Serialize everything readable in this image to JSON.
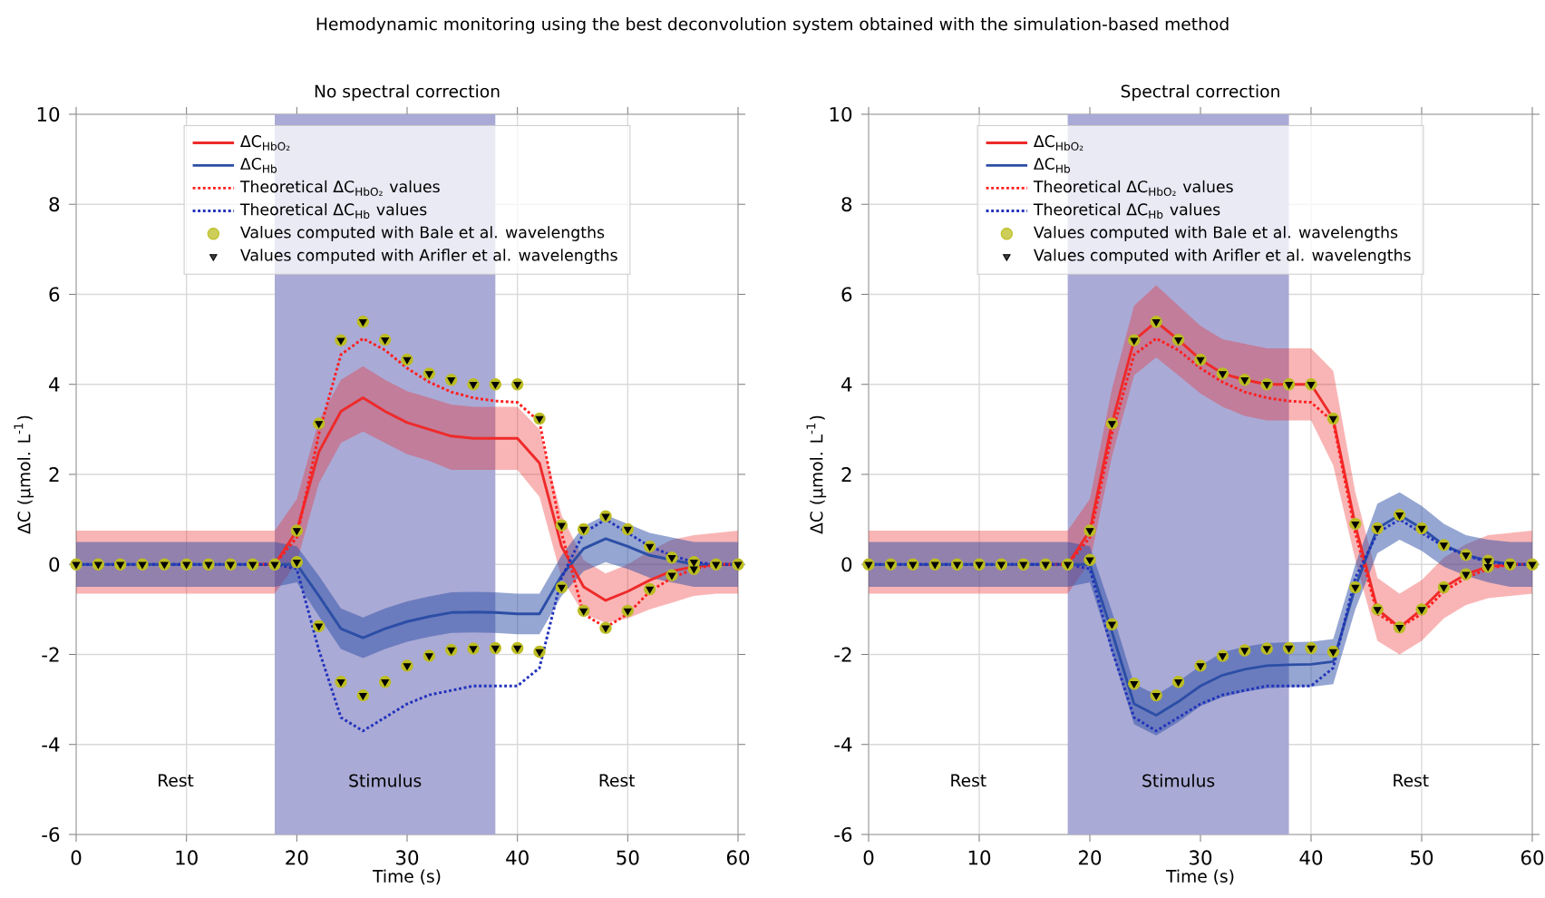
{
  "chart_data": [
    {
      "type": "line",
      "title": "No spectral correction",
      "xlabel": "Time (s)",
      "ylabel": "ΔC (μmol. L$^{-1}$)",
      "annotations": [
        "Hemodynamic monitoring using the best deconvolution system obtained with the simulation-based method",
        "Rest",
        "Stimulus",
        "Rest"
      ],
      "x": [
        0,
        2,
        4,
        6,
        8,
        10,
        12,
        14,
        16,
        18,
        20,
        22,
        24,
        26,
        28,
        30,
        32,
        34,
        36,
        38,
        40,
        42,
        44,
        46,
        48,
        50,
        52,
        54,
        56,
        58,
        60
      ],
      "xlim": [
        0,
        60
      ],
      "xticks": [
        0,
        10,
        20,
        30,
        40,
        50,
        60
      ],
      "ylim": [
        -6,
        10
      ],
      "yticks": [
        -6,
        -4,
        -2,
        0,
        2,
        4,
        6,
        8,
        10
      ],
      "grid": true,
      "legend": "top",
      "bands": [
        {
          "axis": "x",
          "from": 18,
          "to": 38,
          "color": "#aaaad6"
        }
      ],
      "series": [
        {
          "name": "ΔC$_{HbO₂}$",
          "color": "#ee2a2a",
          "line_style": "solid",
          "values": [
            null,
            null,
            null,
            null,
            null,
            null,
            null,
            null,
            0,
            0,
            0.75,
            2.5,
            3.4,
            3.7,
            3.4,
            3.15,
            3.0,
            2.85,
            2.8,
            2.8,
            2.8,
            2.25,
            0.4,
            -0.5,
            -0.8,
            -0.6,
            -0.35,
            -0.15,
            -0.05,
            0,
            0
          ],
          "lower": [
            -0.65,
            -0.65,
            -0.65,
            -0.65,
            -0.65,
            -0.65,
            -0.65,
            -0.65,
            -0.65,
            -0.65,
            0.05,
            1.8,
            2.7,
            2.95,
            2.7,
            2.45,
            2.3,
            2.1,
            2.1,
            2.1,
            2.1,
            1.5,
            -0.3,
            -1.1,
            -1.3,
            -1.2,
            -1.0,
            -0.85,
            -0.7,
            -0.65,
            -0.65
          ],
          "upper": [
            0.75,
            0.75,
            0.75,
            0.75,
            0.75,
            0.75,
            0.75,
            0.75,
            0.75,
            0.75,
            1.45,
            3.2,
            4.1,
            4.4,
            4.1,
            3.85,
            3.7,
            3.55,
            3.5,
            3.5,
            3.5,
            3.0,
            1.1,
            0.1,
            -0.2,
            0.0,
            0.3,
            0.55,
            0.65,
            0.7,
            0.75
          ]
        },
        {
          "name": "ΔC$_{Hb}$",
          "color": "#2c4ea6",
          "line_style": "solid",
          "values": [
            0,
            0,
            0,
            0,
            0,
            0,
            0,
            0,
            0,
            0,
            0,
            -0.7,
            -1.43,
            -1.63,
            -1.43,
            -1.27,
            -1.16,
            -1.07,
            -1.06,
            -1.07,
            -1.1,
            -1.1,
            -0.25,
            0.35,
            0.57,
            0.4,
            0.2,
            0.1,
            0,
            0,
            0
          ],
          "lower": [
            -0.5,
            -0.5,
            -0.5,
            -0.5,
            -0.5,
            -0.5,
            -0.5,
            -0.5,
            -0.5,
            -0.5,
            -0.4,
            -1.15,
            -1.88,
            -2.08,
            -1.88,
            -1.72,
            -1.61,
            -1.52,
            -1.51,
            -1.52,
            -1.55,
            -1.55,
            -0.7,
            -0.15,
            0.05,
            -0.1,
            -0.3,
            -0.4,
            -0.5,
            -0.5,
            -0.5
          ],
          "upper": [
            0.5,
            0.5,
            0.5,
            0.5,
            0.5,
            0.5,
            0.5,
            0.5,
            0.5,
            0.5,
            0.4,
            -0.25,
            -0.98,
            -1.18,
            -0.98,
            -0.82,
            -0.71,
            -0.62,
            -0.61,
            -0.62,
            -0.65,
            -0.65,
            0.2,
            0.85,
            1.1,
            0.9,
            0.7,
            0.6,
            0.5,
            0.5,
            0.5
          ]
        },
        {
          "name": "Theoretical ΔC$_{HbO₂}$ values",
          "color": "#ff1f1f",
          "line_style": "dotted",
          "values": [
            null,
            null,
            null,
            null,
            null,
            null,
            null,
            null,
            0,
            0,
            0.6,
            2.9,
            4.66,
            5.02,
            4.76,
            4.36,
            4.05,
            3.83,
            3.7,
            3.63,
            3.6,
            3.17,
            0.7,
            -1.1,
            -1.4,
            -1.1,
            -0.6,
            -0.3,
            -0.1,
            0,
            0
          ]
        },
        {
          "name": "Theoretical ΔC$_{Hb}$ values",
          "color": "#2233bb",
          "line_style": "dotted",
          "values": [
            0,
            0,
            0,
            0,
            0,
            0,
            0,
            0,
            0,
            0,
            -0.1,
            -1.9,
            -3.4,
            -3.7,
            -3.4,
            -3.1,
            -2.9,
            -2.8,
            -2.7,
            -2.7,
            -2.7,
            -2.3,
            -0.3,
            0.7,
            1.0,
            0.7,
            0.4,
            0.2,
            0.05,
            0,
            0
          ]
        },
        {
          "name": "Values computed with Bale et al. wavelengths",
          "type": "scatter",
          "marker": "circle",
          "color": "#bcbd22",
          "values": [
            0,
            0,
            0,
            0,
            0,
            0,
            0,
            0,
            0,
            0,
            0.75,
            3.13,
            4.98,
            5.39,
            4.99,
            4.55,
            4.24,
            4.1,
            4.0,
            4.0,
            4.0,
            3.24,
            0.87,
            -1.03,
            -1.41,
            -1.03,
            -0.55,
            -0.24,
            -0.1,
            0,
            0
          ]
        },
        {
          "type": "scatter",
          "marker": "circle",
          "color": "#bcbd22",
          "values": [
            null,
            null,
            null,
            null,
            null,
            null,
            null,
            null,
            null,
            null,
            0.05,
            -1.37,
            -2.61,
            -2.91,
            -2.61,
            -2.25,
            -2.03,
            -1.9,
            -1.87,
            -1.86,
            -1.86,
            -1.94,
            -0.51,
            0.78,
            1.07,
            0.78,
            0.4,
            0.15,
            0.05,
            null,
            null
          ]
        },
        {
          "name": "Values computed with Arifler et al. wavelengths",
          "type": "scatter",
          "marker": "triangle",
          "color": "#000000",
          "values": [
            0,
            0,
            0,
            0,
            0,
            0,
            0,
            0,
            0,
            0,
            0.75,
            3.13,
            4.98,
            5.39,
            4.99,
            4.55,
            4.24,
            4.1,
            4.0,
            4.0,
            4.0,
            3.24,
            0.87,
            -1.03,
            -1.41,
            -1.03,
            -0.55,
            -0.24,
            -0.1,
            0,
            0
          ]
        },
        {
          "type": "scatter",
          "marker": "triangle",
          "color": "#000000",
          "values": [
            null,
            null,
            null,
            null,
            null,
            null,
            null,
            null,
            null,
            null,
            0.05,
            -1.37,
            -2.61,
            -2.91,
            -2.61,
            -2.25,
            -2.03,
            -1.9,
            -1.87,
            -1.86,
            -1.86,
            -1.94,
            -0.51,
            0.78,
            1.07,
            0.78,
            0.4,
            0.15,
            0.05,
            null,
            null
          ]
        }
      ]
    },
    {
      "type": "line",
      "title": "Spectral correction",
      "xlabel": "Time (s)",
      "ylabel": "ΔC (μmol. L$^{-1}$)",
      "annotations": [
        "Rest",
        "Stimulus",
        "Rest"
      ],
      "x": [
        0,
        2,
        4,
        6,
        8,
        10,
        12,
        14,
        16,
        18,
        20,
        22,
        24,
        26,
        28,
        30,
        32,
        34,
        36,
        38,
        40,
        42,
        44,
        46,
        48,
        50,
        52,
        54,
        56,
        58,
        60
      ],
      "xlim": [
        0,
        60
      ],
      "xticks": [
        0,
        10,
        20,
        30,
        40,
        50,
        60
      ],
      "ylim": [
        -6,
        10
      ],
      "yticks": [
        -6,
        -4,
        -2,
        0,
        2,
        4,
        6,
        8,
        10
      ],
      "grid": true,
      "legend": "top",
      "bands": [
        {
          "axis": "x",
          "from": 18,
          "to": 38,
          "color": "#aaaad6"
        }
      ],
      "series": [
        {
          "name": "ΔC$_{HbO₂}$",
          "color": "#ee2a2a",
          "line_style": "solid",
          "values": [
            null,
            null,
            null,
            null,
            null,
            null,
            null,
            null,
            0,
            0,
            0.75,
            3.13,
            4.98,
            5.39,
            4.99,
            4.55,
            4.24,
            4.1,
            4.0,
            4.0,
            4.0,
            3.24,
            0.87,
            -1.0,
            -1.4,
            -1.0,
            -0.51,
            -0.22,
            -0.05,
            0,
            0
          ],
          "lower": [
            -0.65,
            -0.65,
            -0.65,
            -0.65,
            -0.65,
            -0.65,
            -0.65,
            -0.65,
            -0.65,
            -0.65,
            0.05,
            2.4,
            4.2,
            4.6,
            4.2,
            3.8,
            3.5,
            3.3,
            3.2,
            3.2,
            3.2,
            2.2,
            0.1,
            -1.7,
            -2.0,
            -1.7,
            -1.2,
            -0.9,
            -0.75,
            -0.7,
            -0.65
          ],
          "upper": [
            0.75,
            0.75,
            0.75,
            0.75,
            0.75,
            0.75,
            0.75,
            0.75,
            0.75,
            0.75,
            1.45,
            3.9,
            5.75,
            6.2,
            5.75,
            5.3,
            5.0,
            4.9,
            4.8,
            4.8,
            4.8,
            4.3,
            1.6,
            -0.3,
            -0.65,
            -0.35,
            0.15,
            0.45,
            0.65,
            0.7,
            0.75
          ]
        },
        {
          "name": "ΔC$_{Hb}$",
          "color": "#2c4ea6",
          "line_style": "solid",
          "values": [
            0,
            0,
            0,
            0,
            0,
            0,
            0,
            0,
            0,
            0,
            0,
            -1.5,
            -3.1,
            -3.35,
            -3.05,
            -2.7,
            -2.46,
            -2.33,
            -2.25,
            -2.23,
            -2.22,
            -2.16,
            -0.5,
            0.8,
            1.1,
            0.8,
            0.43,
            0.21,
            0.08,
            0,
            0
          ],
          "lower": [
            -0.5,
            -0.5,
            -0.5,
            -0.5,
            -0.5,
            -0.5,
            -0.5,
            -0.5,
            -0.5,
            -0.5,
            -0.4,
            -1.95,
            -3.55,
            -3.8,
            -3.5,
            -3.15,
            -2.95,
            -2.83,
            -2.75,
            -2.73,
            -2.72,
            -2.66,
            -1.0,
            0.25,
            0.55,
            0.3,
            -0.05,
            -0.25,
            -0.4,
            -0.5,
            -0.5
          ],
          "upper": [
            0.5,
            0.5,
            0.5,
            0.5,
            0.5,
            0.5,
            0.5,
            0.5,
            0.5,
            0.5,
            0.4,
            -1.05,
            -2.65,
            -2.9,
            -2.6,
            -2.25,
            -1.95,
            -1.83,
            -1.75,
            -1.73,
            -1.72,
            -1.66,
            0.0,
            1.35,
            1.6,
            1.3,
            0.9,
            0.65,
            0.55,
            0.5,
            0.5
          ]
        },
        {
          "name": "Theoretical ΔC$_{HbO₂}$ values",
          "color": "#ff1f1f",
          "line_style": "dotted",
          "values": [
            null,
            null,
            null,
            null,
            null,
            null,
            null,
            null,
            0,
            0,
            0.6,
            2.9,
            4.66,
            5.02,
            4.76,
            4.36,
            4.05,
            3.83,
            3.7,
            3.63,
            3.6,
            3.17,
            0.7,
            -1.1,
            -1.4,
            -1.1,
            -0.6,
            -0.3,
            -0.1,
            0,
            0
          ]
        },
        {
          "name": "Theoretical ΔC$_{Hb}$ values",
          "color": "#2233bb",
          "line_style": "dotted",
          "values": [
            0,
            0,
            0,
            0,
            0,
            0,
            0,
            0,
            0,
            0,
            -0.1,
            -1.9,
            -3.4,
            -3.7,
            -3.4,
            -3.1,
            -2.9,
            -2.8,
            -2.7,
            -2.7,
            -2.7,
            -2.3,
            -0.3,
            0.7,
            1.0,
            0.7,
            0.4,
            0.2,
            0.05,
            0,
            0
          ]
        },
        {
          "name": "Values computed with Bale et al. wavelengths",
          "type": "scatter",
          "marker": "circle",
          "color": "#bcbd22",
          "values": [
            0,
            0,
            0,
            0,
            0,
            0,
            0,
            0,
            0,
            0,
            0.75,
            3.13,
            4.98,
            5.39,
            4.99,
            4.55,
            4.24,
            4.1,
            4.0,
            4.0,
            4.0,
            3.24,
            0.9,
            -1.0,
            -1.4,
            -1.0,
            -0.51,
            -0.22,
            -0.05,
            0,
            0
          ]
        },
        {
          "type": "scatter",
          "marker": "circle",
          "color": "#bcbd22",
          "values": [
            null,
            null,
            null,
            null,
            null,
            null,
            null,
            null,
            null,
            null,
            0.1,
            -1.33,
            -2.65,
            -2.91,
            -2.61,
            -2.25,
            -2.03,
            -1.91,
            -1.87,
            -1.86,
            -1.86,
            -1.94,
            -0.51,
            0.8,
            1.1,
            0.8,
            0.43,
            0.21,
            0.08,
            null,
            null
          ]
        },
        {
          "name": "Values computed with Arifler et al. wavelengths",
          "type": "scatter",
          "marker": "triangle",
          "color": "#000000",
          "values": [
            0,
            0,
            0,
            0,
            0,
            0,
            0,
            0,
            0,
            0,
            0.75,
            3.13,
            4.98,
            5.39,
            4.99,
            4.55,
            4.24,
            4.1,
            4.0,
            4.0,
            4.0,
            3.24,
            0.9,
            -1.0,
            -1.4,
            -1.0,
            -0.51,
            -0.22,
            -0.05,
            0,
            0
          ]
        },
        {
          "type": "scatter",
          "marker": "triangle",
          "color": "#000000",
          "values": [
            null,
            null,
            null,
            null,
            null,
            null,
            null,
            null,
            null,
            null,
            0.1,
            -1.33,
            -2.65,
            -2.91,
            -2.61,
            -2.25,
            -2.03,
            -1.91,
            -1.87,
            -1.86,
            -1.86,
            -1.94,
            -0.51,
            0.8,
            1.1,
            0.8,
            0.43,
            0.21,
            0.08,
            null,
            null
          ]
        }
      ]
    }
  ]
}
